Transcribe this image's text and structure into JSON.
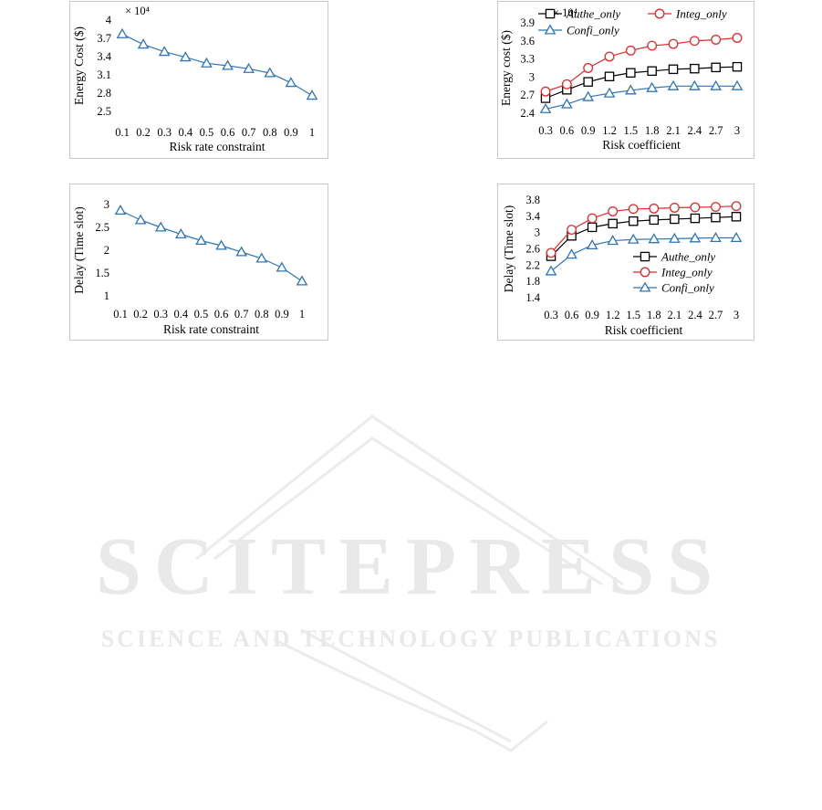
{
  "watermark": {
    "title": "SCITEPRESS",
    "subtitle": "SCIENCE AND TECHNOLOGY PUBLICATIONS"
  },
  "colors": {
    "blue": "#2E75B6",
    "red": "#E8282B",
    "black": "#000000",
    "watermark": "#e9e9e9"
  },
  "chart_data": [
    {
      "id": "c1",
      "type": "line",
      "ylabel": "Energy Cost ($)",
      "xlabel": "Risk rate constraint",
      "multiplier": "× 10⁴",
      "xticks": [
        "0.1",
        "0.2",
        "0.3",
        "0.4",
        "0.5",
        "0.6",
        "0.7",
        "0.8",
        "0.9",
        "1"
      ],
      "ylim": [
        2.5,
        4
      ],
      "yticks": [
        2.5,
        2.8,
        3.1,
        3.4,
        3.7,
        4
      ],
      "grid": false,
      "series": [
        {
          "color": "blue",
          "marker": "triangle",
          "values": [
            3.77,
            3.6,
            3.48,
            3.39,
            3.29,
            3.25,
            3.2,
            3.13,
            2.97,
            2.76
          ]
        }
      ]
    },
    {
      "id": "c2",
      "type": "line",
      "ylabel": "Energy cost ($)",
      "xlabel": "Risk coefficient",
      "multiplier": "× 10⁴",
      "xticks": [
        "0.3",
        "0.6",
        "0.9",
        "1.2",
        "1.5",
        "1.8",
        "2.1",
        "2.4",
        "2.7",
        "3"
      ],
      "ylim": [
        2.4,
        3.9
      ],
      "yticks": [
        2.4,
        2.7,
        3,
        3.3,
        3.6,
        3.9
      ],
      "grid": false,
      "legend": "top",
      "series": [
        {
          "name": "Authe_only",
          "color": "black",
          "marker": "square",
          "values": [
            2.65,
            2.79,
            2.92,
            3.01,
            3.07,
            3.1,
            3.13,
            3.14,
            3.16,
            3.17
          ]
        },
        {
          "name": "Integ_only",
          "color": "red",
          "marker": "circle",
          "values": [
            2.76,
            2.88,
            3.15,
            3.34,
            3.44,
            3.52,
            3.55,
            3.6,
            3.62,
            3.65
          ]
        },
        {
          "name": "Confi_only",
          "color": "blue",
          "marker": "triangle",
          "values": [
            2.47,
            2.55,
            2.67,
            2.73,
            2.78,
            2.82,
            2.85,
            2.85,
            2.85,
            2.85
          ]
        }
      ]
    },
    {
      "id": "c3",
      "type": "line",
      "ylabel": "Delay (Time slot)",
      "xlabel": "Risk rate constraint",
      "xticks": [
        "0.1",
        "0.2",
        "0.3",
        "0.4",
        "0.5",
        "0.6",
        "0.7",
        "0.8",
        "0.9",
        "1"
      ],
      "ylim": [
        1,
        3
      ],
      "yticks": [
        1,
        1.5,
        2,
        2.5,
        3
      ],
      "grid": false,
      "series": [
        {
          "color": "blue",
          "marker": "triangle",
          "values": [
            2.87,
            2.66,
            2.5,
            2.35,
            2.21,
            2.1,
            1.96,
            1.82,
            1.62,
            1.32
          ]
        }
      ]
    },
    {
      "id": "c4",
      "type": "line",
      "ylabel": "Delay (Time slot)",
      "xlabel": "Risk coefficient",
      "xticks": [
        "0.3",
        "0.6",
        "0.9",
        "1.2",
        "1.5",
        "1.8",
        "2.1",
        "2.4",
        "2.7",
        "3"
      ],
      "ylim": [
        1.4,
        3.8
      ],
      "yticks": [
        1.4,
        1.8,
        2.2,
        2.6,
        3,
        3.4,
        3.8
      ],
      "grid": false,
      "legend": "bottom-right",
      "series": [
        {
          "name": "Authe_only",
          "color": "black",
          "marker": "square",
          "values": [
            2.42,
            2.92,
            3.13,
            3.22,
            3.28,
            3.31,
            3.33,
            3.35,
            3.37,
            3.39
          ]
        },
        {
          "name": "Integ_only",
          "color": "red",
          "marker": "circle",
          "values": [
            2.5,
            3.07,
            3.35,
            3.52,
            3.58,
            3.59,
            3.61,
            3.62,
            3.63,
            3.65
          ]
        },
        {
          "name": "Confi_only",
          "color": "blue",
          "marker": "triangle",
          "values": [
            2.05,
            2.46,
            2.69,
            2.8,
            2.83,
            2.84,
            2.85,
            2.86,
            2.87,
            2.87
          ]
        }
      ]
    }
  ]
}
